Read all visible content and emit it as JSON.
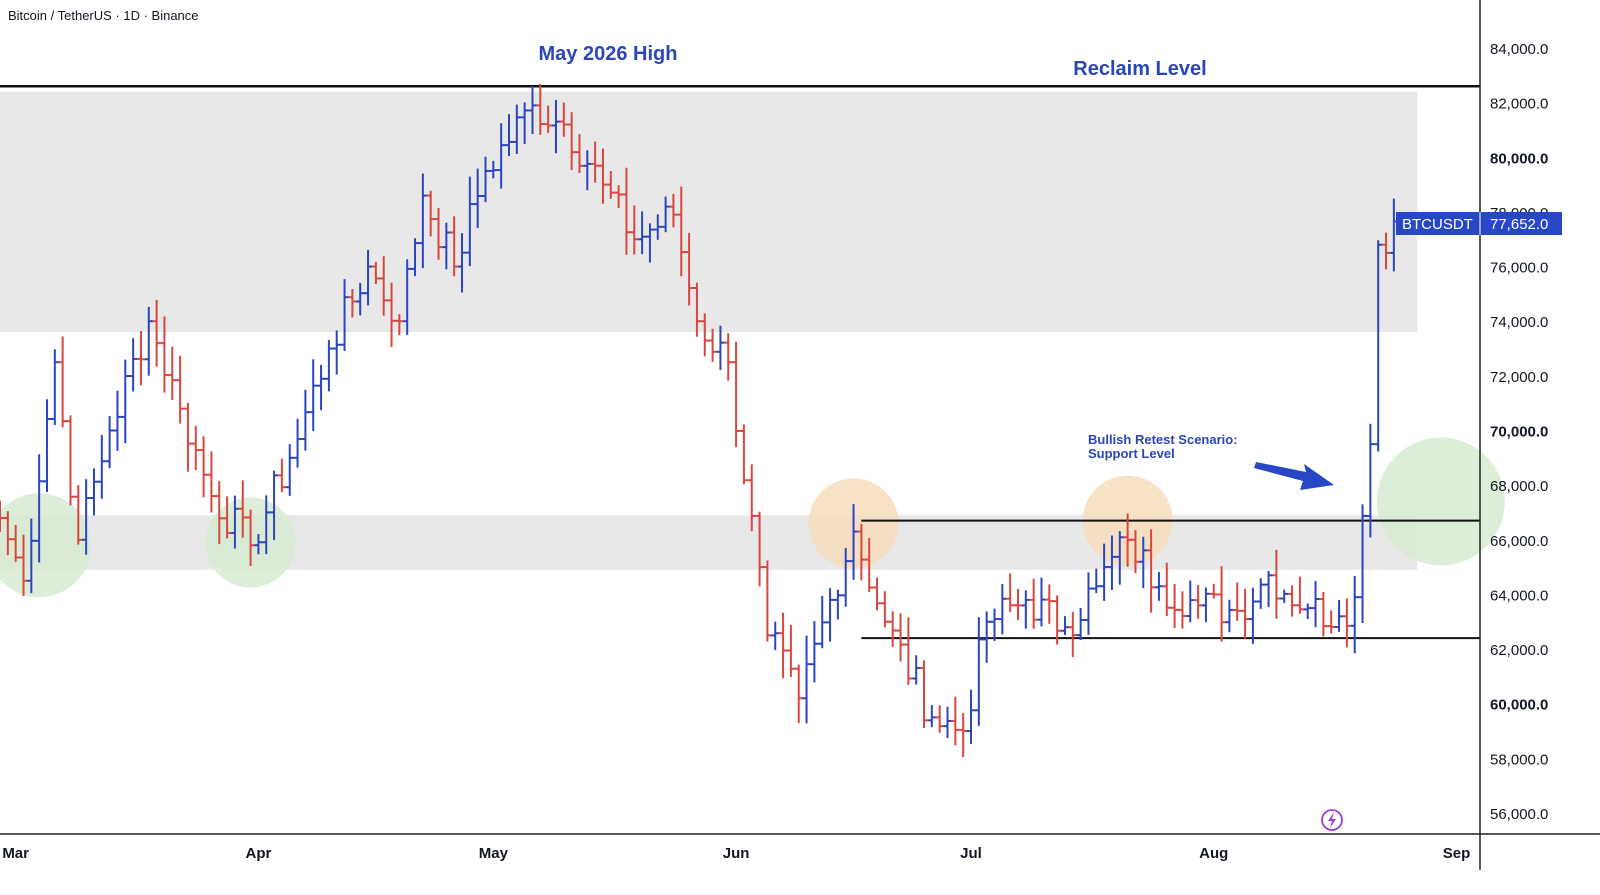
{
  "header": {
    "symbol_title": "Bitcoin / TetherUS · 1D · Binance"
  },
  "colors": {
    "up": "#2b45c2",
    "down": "#d8463f",
    "zone": "#e8e8e8",
    "annotation": "#2c46b8",
    "price_label_bg": "#2847c6",
    "circle_green": "#d6ebd0",
    "circle_orange": "#f6ddbc",
    "axis_text": "#131722",
    "line": "#111111"
  },
  "annotations": {
    "high_label": "May 2026 High",
    "reclaim_label": "Reclaim Level",
    "retest_line1": "Bullish Retest Scenario:",
    "retest_line2": "Support Level"
  },
  "price_label": {
    "symbol": "BTCUSDT",
    "price": "77,652.0",
    "value": 77652
  },
  "tv_icon": "lightning-circle-icon",
  "chart_data": {
    "type": "ohlc",
    "title": "Bitcoin / TetherUS · 1D · Binance",
    "x_start": "2026-02-27",
    "x_end": "2026-09-04",
    "ylim": [
      55200,
      85800
    ],
    "y_ticks": [
      {
        "value": 56000,
        "label": "56,000.0"
      },
      {
        "value": 58000,
        "label": "58,000.0"
      },
      {
        "value": 60000,
        "label": "60,000.0"
      },
      {
        "value": 62000,
        "label": "62,000.0"
      },
      {
        "value": 64000,
        "label": "64,000.0"
      },
      {
        "value": 66000,
        "label": "66,000.0"
      },
      {
        "value": 68000,
        "label": "68,000.0"
      },
      {
        "value": 70000,
        "label": "70,000.0"
      },
      {
        "value": 72000,
        "label": "72,000.0"
      },
      {
        "value": 74000,
        "label": "74,000.0"
      },
      {
        "value": 76000,
        "label": "76,000.0"
      },
      {
        "value": 78000,
        "label": "78,000.0"
      },
      {
        "value": 80000,
        "label": "80,000.0"
      },
      {
        "value": 82000,
        "label": "82,000.0"
      },
      {
        "value": 84000,
        "label": "84,000.0"
      }
    ],
    "x_ticks": [
      {
        "date": "2026-03-01",
        "label": "Mar"
      },
      {
        "date": "2026-04-01",
        "label": "Apr"
      },
      {
        "date": "2026-05-01",
        "label": "May"
      },
      {
        "date": "2026-06-01",
        "label": "Jun"
      },
      {
        "date": "2026-07-01",
        "label": "Jul"
      },
      {
        "date": "2026-08-01",
        "label": "Aug"
      },
      {
        "date": "2026-09-01",
        "label": "Sep"
      }
    ],
    "zones": [
      {
        "from": 73600,
        "to": 82400,
        "start": "2026-02-27",
        "end": "2026-08-27"
      },
      {
        "from": 64900,
        "to": 66900,
        "start": "2026-02-27",
        "end": "2026-08-27"
      }
    ],
    "levels": [
      {
        "value": 82600,
        "start": "2026-02-27",
        "end": "2026-09-06"
      },
      {
        "value": 66700,
        "start": "2026-06-17",
        "end": "2026-09-06"
      },
      {
        "value": 62400,
        "start": "2026-06-17",
        "end": "2026-09-06"
      }
    ],
    "circles": [
      {
        "date": "2026-03-04",
        "value": 65800,
        "color": "green"
      },
      {
        "date": "2026-03-31",
        "value": 65900,
        "color": "green"
      },
      {
        "date": "2026-06-16",
        "value": 66600,
        "color": "orange"
      },
      {
        "date": "2026-07-21",
        "value": 66700,
        "color": "orange"
      },
      {
        "date": "2026-08-30",
        "value": 67400,
        "color": "green"
      }
    ],
    "ohlc_anchors": [
      [
        "2026-02-27",
        66800
      ],
      [
        "2026-03-02",
        64500
      ],
      [
        "2026-03-06",
        72500
      ],
      [
        "2026-03-09",
        66000
      ],
      [
        "2026-03-13",
        70000
      ],
      [
        "2026-03-18",
        74000
      ],
      [
        "2026-03-22",
        70800
      ],
      [
        "2026-03-26",
        67600
      ],
      [
        "2026-03-31",
        65800
      ],
      [
        "2026-04-05",
        69000
      ],
      [
        "2026-04-10",
        73000
      ],
      [
        "2026-04-15",
        76000
      ],
      [
        "2026-04-19",
        74000
      ],
      [
        "2026-04-22",
        78600
      ],
      [
        "2026-04-26",
        76000
      ],
      [
        "2026-04-30",
        79500
      ],
      [
        "2026-05-06",
        81900
      ],
      [
        "2026-05-10",
        81200
      ],
      [
        "2026-05-15",
        79000
      ],
      [
        "2026-05-19",
        77000
      ],
      [
        "2026-05-24",
        77900
      ],
      [
        "2026-05-27",
        74000
      ],
      [
        "2026-05-31",
        72500
      ],
      [
        "2026-06-05",
        62500
      ],
      [
        "2026-06-09",
        60200
      ],
      [
        "2026-06-13",
        63800
      ],
      [
        "2026-06-16",
        66300
      ],
      [
        "2026-06-20",
        63000
      ],
      [
        "2026-06-26",
        59500
      ],
      [
        "2026-06-30",
        59000
      ],
      [
        "2026-07-03",
        63000
      ],
      [
        "2026-07-08",
        63800
      ],
      [
        "2026-07-13",
        62800
      ],
      [
        "2026-07-17",
        64300
      ],
      [
        "2026-07-21",
        66000
      ],
      [
        "2026-07-25",
        64300
      ],
      [
        "2026-07-30",
        63600
      ],
      [
        "2026-08-04",
        63400
      ],
      [
        "2026-08-08",
        64700
      ],
      [
        "2026-08-13",
        63500
      ],
      [
        "2026-08-17",
        63200
      ],
      [
        "2026-08-19",
        63900
      ],
      [
        "2026-08-21",
        69500
      ],
      [
        "2026-08-22",
        76800
      ],
      [
        "2026-08-23",
        76500
      ],
      [
        "2026-08-24",
        77652
      ]
    ]
  }
}
